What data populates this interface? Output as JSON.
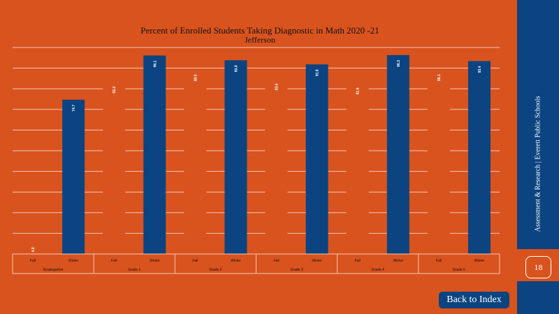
{
  "chart_data": {
    "type": "bar",
    "title": "Percent  of Enrolled Students Taking Diagnostic  in Math 2020  -21",
    "subtitle": "Jefferson",
    "xlabel": "",
    "ylabel": "",
    "ylim": [
      0,
      100
    ],
    "grid": true,
    "groups": [
      {
        "name": "Kindergarten",
        "bars": [
          {
            "label": "Fall",
            "value": 4.8,
            "display": "4.8"
          },
          {
            "label": "Winter",
            "value": 74.7,
            "display": "74.7"
          }
        ]
      },
      {
        "name": "Grade 1",
        "bars": [
          {
            "label": "Fall",
            "value": 82.2,
            "display": "82.2"
          },
          {
            "label": "Winter",
            "value": 96.1,
            "display": "96.1"
          }
        ]
      },
      {
        "name": "Grade 2",
        "bars": [
          {
            "label": "Fall",
            "value": 88.0,
            "display": "88.0"
          },
          {
            "label": "Winter",
            "value": 93.8,
            "display": "93.8"
          }
        ]
      },
      {
        "name": "Grade 3",
        "bars": [
          {
            "label": "Fall",
            "value": 83.6,
            "display": "83.6"
          },
          {
            "label": "Winter",
            "value": 91.8,
            "display": "91.8"
          }
        ]
      },
      {
        "name": "Grade 4",
        "bars": [
          {
            "label": "Fall",
            "value": 81.6,
            "display": "81.6"
          },
          {
            "label": "Winter",
            "value": 96.3,
            "display": "96.3"
          }
        ]
      },
      {
        "name": "Grade 5",
        "bars": [
          {
            "label": "Fall",
            "value": 88.1,
            "display": "88.1"
          },
          {
            "label": "Winter",
            "value": 93.4,
            "display": "93.4"
          }
        ]
      }
    ],
    "colors": {
      "background": "#D9531E",
      "bar": "#0B4480",
      "grid": "#F3C9B4",
      "text": "#111111",
      "label": "#ffffff"
    }
  },
  "sidebar": {
    "caption": "Assessment & Research |  Everett Public Schools",
    "page_number": "18"
  },
  "nav": {
    "back_label": "Back to Index"
  }
}
